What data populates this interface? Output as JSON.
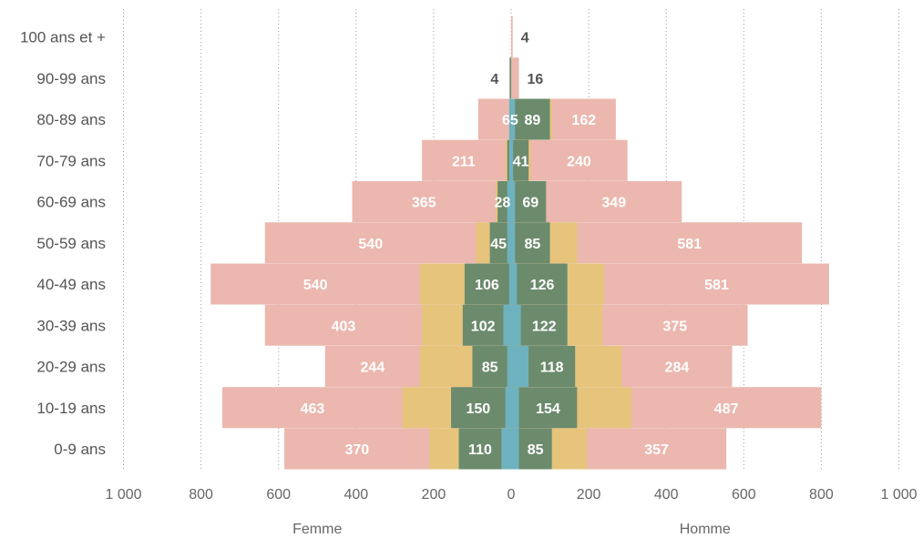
{
  "chart_data": {
    "type": "bar",
    "orientation": "horizontal",
    "layout": "population-pyramid",
    "categories": [
      "100 ans et +",
      "90-99 ans",
      "80-89 ans",
      "70-79 ans",
      "60-69 ans",
      "50-59 ans",
      "40-49 ans",
      "30-39 ans",
      "20-29 ans",
      "10-19 ans",
      "0-9 ans"
    ],
    "sides": {
      "left": "Femme",
      "right": "Homme"
    },
    "xlim": [
      -1000,
      1000
    ],
    "xticks": [
      -1000,
      -800,
      -600,
      -400,
      -200,
      0,
      200,
      400,
      600,
      800,
      1000
    ],
    "xtick_labels": [
      "1 000",
      "800",
      "600",
      "400",
      "200",
      "0",
      "200",
      "400",
      "600",
      "800",
      "1 000"
    ],
    "grid": true,
    "layers": [
      {
        "color": "#ebb7ae",
        "label_color": "#ffffff",
        "left": [
          0,
          0,
          85,
          230,
          410,
          635,
          775,
          635,
          480,
          745,
          585
        ],
        "right": [
          4,
          20,
          270,
          300,
          440,
          750,
          820,
          610,
          570,
          800,
          555
        ],
        "left_labels": [
          "",
          "",
          "",
          "211",
          "365",
          "540",
          "540",
          "403",
          "244",
          "463",
          "370"
        ],
        "right_labels": [
          "",
          "",
          "162",
          "240",
          "349",
          "581",
          "581",
          "375",
          "284",
          "487",
          "357"
        ]
      },
      {
        "color": "#e6c47c",
        "label_color": "#ffffff",
        "left": [
          0,
          0,
          0,
          15,
          40,
          90,
          235,
          230,
          235,
          280,
          210
        ],
        "right": [
          0,
          0,
          105,
          50,
          90,
          170,
          240,
          235,
          285,
          310,
          195
        ],
        "left_labels": [
          "",
          "",
          "",
          "",
          "",
          "",
          "",
          "",
          "",
          "",
          ""
        ],
        "right_labels": [
          "",
          "",
          "",
          "",
          "",
          "",
          "",
          "",
          "",
          "",
          ""
        ]
      },
      {
        "color": "#6c8b6d",
        "label_color": "#ffffff",
        "left": [
          0,
          4,
          0,
          10,
          35,
          55,
          120,
          125,
          100,
          155,
          135
        ],
        "right": [
          0,
          0,
          100,
          45,
          90,
          100,
          145,
          145,
          165,
          170,
          105
        ],
        "left_labels": [
          "",
          "",
          "65",
          "",
          "28",
          "45",
          "106",
          "102",
          "85",
          "150",
          "110"
        ],
        "right_labels": [
          "",
          "",
          "89",
          "41",
          "69",
          "85",
          "126",
          "122",
          "118",
          "154",
          "85"
        ]
      },
      {
        "color": "#6fb2bf",
        "label_color": "#ffffff",
        "left": [
          0,
          0,
          5,
          5,
          10,
          10,
          5,
          20,
          10,
          15,
          25
        ],
        "right": [
          0,
          0,
          10,
          5,
          10,
          10,
          15,
          25,
          45,
          20,
          20
        ],
        "left_labels": [
          "",
          "",
          "",
          "",
          "",
          "",
          "",
          "",
          "",
          "",
          ""
        ],
        "right_labels": [
          "",
          "",
          "",
          "",
          "",
          "",
          "",
          "",
          "",
          "",
          ""
        ]
      }
    ],
    "outside_labels": {
      "color": "#555555",
      "left": [
        "",
        "4",
        "",
        "",
        "",
        "",
        "",
        "",
        "",
        "",
        ""
      ],
      "right": [
        "4",
        "16",
        "",
        "",
        "",
        "",
        "",
        "",
        "",
        "",
        ""
      ]
    }
  }
}
